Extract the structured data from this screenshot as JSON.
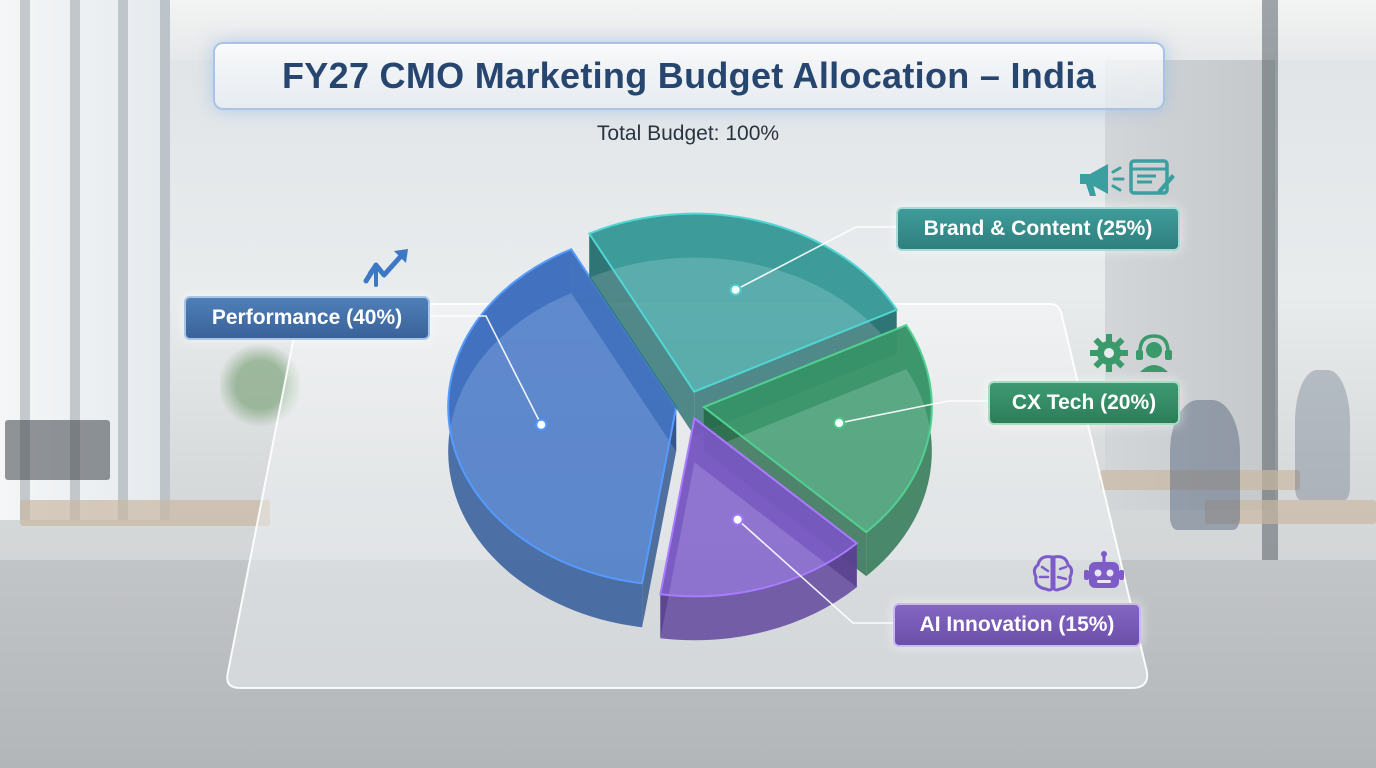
{
  "title": "FY27 CMO Marketing Budget Allocation – India",
  "subtitle": "Total Budget: 100%",
  "chart_data": {
    "type": "pie",
    "title": "FY27 CMO Marketing Budget Allocation – India",
    "subtitle": "Total Budget: 100%",
    "slices": [
      {
        "label": "Performance (40%)",
        "value": 40,
        "color": "#3f73c4"
      },
      {
        "label": "Brand & Content (25%)",
        "value": 25,
        "color": "#3a9f9e"
      },
      {
        "label": "CX Tech (20%)",
        "value": 20,
        "color": "#3b9a6c"
      },
      {
        "label": "AI Innovation (15%)",
        "value": 15,
        "color": "#7d5bc9"
      }
    ]
  },
  "icons": {
    "performance": "trend-up-arrows-icon",
    "brand": [
      "megaphone-icon",
      "content-document-icon"
    ],
    "cx": [
      "gear-icon",
      "headset-icon"
    ],
    "ai": [
      "brain-icon",
      "robot-icon"
    ]
  }
}
